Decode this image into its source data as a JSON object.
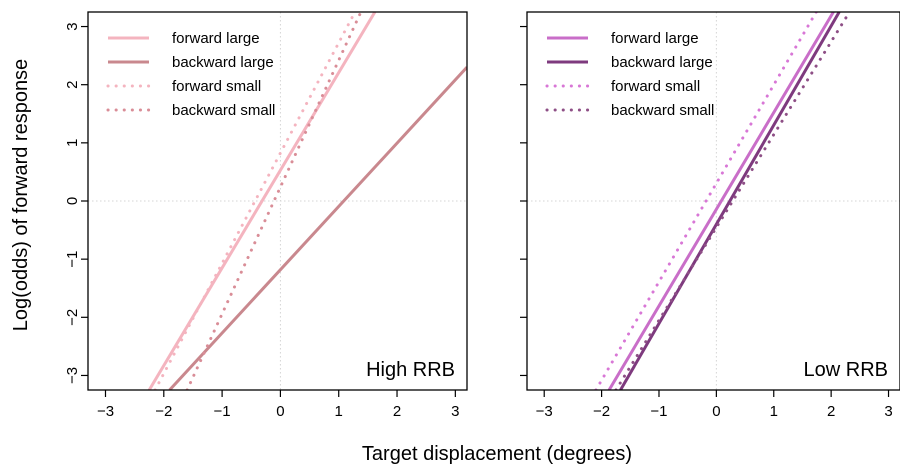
{
  "figure": {
    "xlabel": "Target displacement (degrees)",
    "ylabel": "Log(odds) of forward response"
  },
  "chart_data": [
    {
      "type": "line",
      "panel_label": "High RRB",
      "xlim": [
        -3.3,
        3.2
      ],
      "ylim": [
        -3.25,
        3.25
      ],
      "x_ticks": [
        -3,
        -2,
        -1,
        0,
        1,
        2,
        3
      ],
      "y_ticks": [
        -3,
        -2,
        -1,
        0,
        1,
        2,
        3
      ],
      "x_tick_labels": [
        "−3",
        "−2",
        "−1",
        "0",
        "1",
        "2",
        "3"
      ],
      "y_tick_labels": [
        "−3",
        "−2",
        "−1",
        "0",
        "1",
        "2",
        "3"
      ],
      "grid": "dotted reference lines at x = 0 and y = 0",
      "legend_position": "top-left",
      "series": [
        {
          "name": "forward large",
          "style": "solid",
          "color": "#f4b4bf",
          "x": [
            -2.25,
            1.62
          ],
          "y": [
            -3.25,
            3.25
          ]
        },
        {
          "name": "backward large",
          "style": "solid",
          "color": "#c9888e",
          "x": [
            -1.9,
            3.2
          ],
          "y": [
            -3.25,
            2.3
          ]
        },
        {
          "name": "forward small",
          "style": "dotted",
          "color": "#f4b4bf",
          "x": [
            -2.15,
            1.28
          ],
          "y": [
            -3.25,
            3.25
          ]
        },
        {
          "name": "backward small",
          "style": "dotted",
          "color": "#d98d97",
          "x": [
            -1.6,
            1.38
          ],
          "y": [
            -3.25,
            3.25
          ]
        }
      ]
    },
    {
      "type": "line",
      "panel_label": "Low RRB",
      "xlim": [
        -3.3,
        3.2
      ],
      "ylim": [
        -3.25,
        3.25
      ],
      "x_ticks": [
        -3,
        -2,
        -1,
        0,
        1,
        2,
        3
      ],
      "y_ticks": [
        -3,
        -2,
        -1,
        0,
        1,
        2,
        3
      ],
      "x_tick_labels": [
        "−3",
        "−2",
        "−1",
        "0",
        "1",
        "2",
        "3"
      ],
      "y_tick_labels": [
        "",
        "",
        "",
        "",
        "",
        "",
        ""
      ],
      "grid": "dotted reference lines at x = 0 and y = 0",
      "legend_position": "top-left",
      "series": [
        {
          "name": "forward large",
          "style": "solid",
          "color": "#c96ec8",
          "x": [
            -1.87,
            2.04
          ],
          "y": [
            -3.25,
            3.25
          ]
        },
        {
          "name": "backward large",
          "style": "solid",
          "color": "#7e3a7e",
          "x": [
            -1.67,
            2.14
          ],
          "y": [
            -3.25,
            3.25
          ]
        },
        {
          "name": "forward small",
          "style": "dotted",
          "color": "#d877d6",
          "x": [
            -2.1,
            1.74
          ],
          "y": [
            -3.25,
            3.25
          ]
        },
        {
          "name": "backward small",
          "style": "dotted",
          "color": "#8e4f86",
          "x": [
            -1.75,
            2.32
          ],
          "y": [
            -3.25,
            3.25
          ]
        }
      ]
    }
  ]
}
